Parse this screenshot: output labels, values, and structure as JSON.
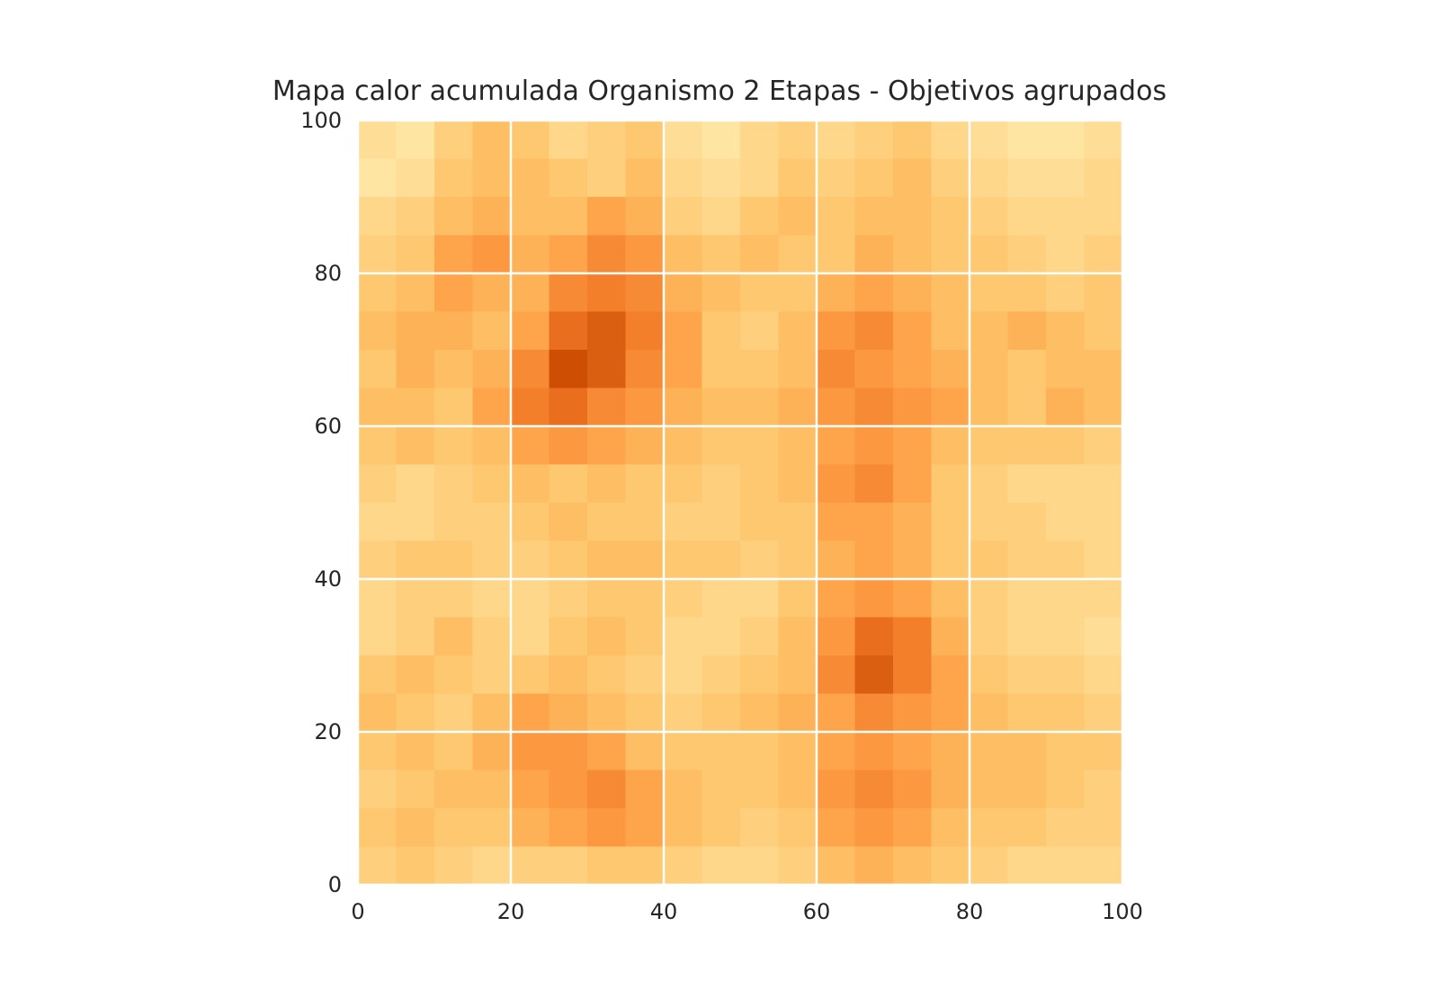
{
  "chart_data": {
    "type": "heatmap",
    "title": "Mapa calor acumulada Organismo 2 Etapas - Objetivos agrupados",
    "xlabel": "",
    "ylabel": "",
    "xlim": [
      0,
      100
    ],
    "ylim": [
      0,
      100
    ],
    "xticks": [
      "0",
      "20",
      "40",
      "60",
      "80",
      "100"
    ],
    "yticks": [
      "0",
      "20",
      "40",
      "60",
      "80",
      "100"
    ],
    "grid": true,
    "colormap": [
      "#ffffcc",
      "#ffedb0",
      "#fed98e",
      "#fec46a",
      "#fe9f45",
      "#f27b27",
      "#cc4c02",
      "#8c2d04"
    ],
    "grid_color": "#ffffff",
    "cell_size": 5,
    "rows_note": "rows listed from top (y=95-100) to bottom (y=0-5), values 0-1 relative intensity",
    "values": [
      [
        0.25,
        0.2,
        0.35,
        0.45,
        0.4,
        0.3,
        0.35,
        0.4,
        0.25,
        0.2,
        0.3,
        0.35,
        0.3,
        0.35,
        0.4,
        0.3,
        0.25,
        0.2,
        0.2,
        0.25
      ],
      [
        0.2,
        0.25,
        0.4,
        0.45,
        0.45,
        0.4,
        0.35,
        0.45,
        0.3,
        0.25,
        0.3,
        0.4,
        0.35,
        0.4,
        0.45,
        0.35,
        0.3,
        0.25,
        0.25,
        0.3
      ],
      [
        0.3,
        0.35,
        0.45,
        0.5,
        0.45,
        0.45,
        0.55,
        0.5,
        0.35,
        0.3,
        0.4,
        0.45,
        0.4,
        0.45,
        0.45,
        0.4,
        0.35,
        0.3,
        0.3,
        0.3
      ],
      [
        0.35,
        0.4,
        0.55,
        0.6,
        0.5,
        0.55,
        0.65,
        0.6,
        0.45,
        0.4,
        0.45,
        0.4,
        0.4,
        0.5,
        0.45,
        0.4,
        0.4,
        0.35,
        0.3,
        0.35
      ],
      [
        0.4,
        0.45,
        0.55,
        0.5,
        0.5,
        0.65,
        0.7,
        0.65,
        0.5,
        0.45,
        0.4,
        0.4,
        0.5,
        0.55,
        0.5,
        0.45,
        0.4,
        0.4,
        0.35,
        0.4
      ],
      [
        0.45,
        0.5,
        0.5,
        0.45,
        0.55,
        0.75,
        0.8,
        0.7,
        0.55,
        0.4,
        0.35,
        0.45,
        0.6,
        0.65,
        0.55,
        0.45,
        0.45,
        0.5,
        0.45,
        0.4
      ],
      [
        0.4,
        0.5,
        0.45,
        0.5,
        0.65,
        0.85,
        0.8,
        0.65,
        0.55,
        0.4,
        0.4,
        0.45,
        0.65,
        0.6,
        0.55,
        0.5,
        0.45,
        0.4,
        0.45,
        0.45
      ],
      [
        0.45,
        0.45,
        0.4,
        0.55,
        0.7,
        0.75,
        0.65,
        0.6,
        0.5,
        0.45,
        0.45,
        0.5,
        0.6,
        0.65,
        0.6,
        0.55,
        0.45,
        0.4,
        0.5,
        0.45
      ],
      [
        0.4,
        0.45,
        0.4,
        0.45,
        0.55,
        0.6,
        0.55,
        0.5,
        0.45,
        0.4,
        0.4,
        0.45,
        0.55,
        0.6,
        0.55,
        0.45,
        0.4,
        0.4,
        0.4,
        0.35
      ],
      [
        0.35,
        0.3,
        0.35,
        0.4,
        0.45,
        0.4,
        0.45,
        0.4,
        0.4,
        0.35,
        0.4,
        0.45,
        0.6,
        0.65,
        0.55,
        0.4,
        0.35,
        0.3,
        0.3,
        0.3
      ],
      [
        0.3,
        0.3,
        0.35,
        0.35,
        0.4,
        0.45,
        0.4,
        0.4,
        0.35,
        0.35,
        0.4,
        0.4,
        0.55,
        0.55,
        0.5,
        0.4,
        0.35,
        0.35,
        0.3,
        0.3
      ],
      [
        0.35,
        0.4,
        0.4,
        0.35,
        0.35,
        0.4,
        0.45,
        0.45,
        0.4,
        0.4,
        0.35,
        0.4,
        0.5,
        0.55,
        0.5,
        0.4,
        0.4,
        0.35,
        0.35,
        0.3
      ],
      [
        0.3,
        0.35,
        0.35,
        0.3,
        0.3,
        0.35,
        0.4,
        0.4,
        0.35,
        0.3,
        0.3,
        0.4,
        0.55,
        0.6,
        0.55,
        0.45,
        0.35,
        0.3,
        0.3,
        0.3
      ],
      [
        0.3,
        0.35,
        0.45,
        0.35,
        0.3,
        0.4,
        0.45,
        0.4,
        0.3,
        0.3,
        0.35,
        0.45,
        0.6,
        0.75,
        0.7,
        0.5,
        0.35,
        0.3,
        0.3,
        0.25
      ],
      [
        0.4,
        0.45,
        0.4,
        0.35,
        0.4,
        0.45,
        0.4,
        0.35,
        0.3,
        0.35,
        0.4,
        0.45,
        0.65,
        0.8,
        0.7,
        0.55,
        0.4,
        0.35,
        0.35,
        0.3
      ],
      [
        0.45,
        0.4,
        0.35,
        0.45,
        0.55,
        0.5,
        0.45,
        0.4,
        0.35,
        0.4,
        0.45,
        0.5,
        0.55,
        0.65,
        0.6,
        0.55,
        0.45,
        0.4,
        0.4,
        0.35
      ],
      [
        0.4,
        0.45,
        0.4,
        0.5,
        0.6,
        0.6,
        0.55,
        0.45,
        0.4,
        0.4,
        0.4,
        0.45,
        0.55,
        0.6,
        0.55,
        0.5,
        0.45,
        0.45,
        0.4,
        0.4
      ],
      [
        0.35,
        0.4,
        0.45,
        0.45,
        0.55,
        0.6,
        0.65,
        0.55,
        0.45,
        0.4,
        0.4,
        0.45,
        0.6,
        0.65,
        0.6,
        0.5,
        0.45,
        0.45,
        0.4,
        0.35
      ],
      [
        0.4,
        0.45,
        0.4,
        0.4,
        0.5,
        0.55,
        0.6,
        0.55,
        0.45,
        0.4,
        0.35,
        0.4,
        0.55,
        0.6,
        0.55,
        0.45,
        0.4,
        0.4,
        0.35,
        0.35
      ],
      [
        0.35,
        0.4,
        0.35,
        0.3,
        0.35,
        0.35,
        0.4,
        0.4,
        0.35,
        0.3,
        0.3,
        0.35,
        0.45,
        0.5,
        0.45,
        0.4,
        0.35,
        0.3,
        0.3,
        0.3
      ]
    ]
  }
}
